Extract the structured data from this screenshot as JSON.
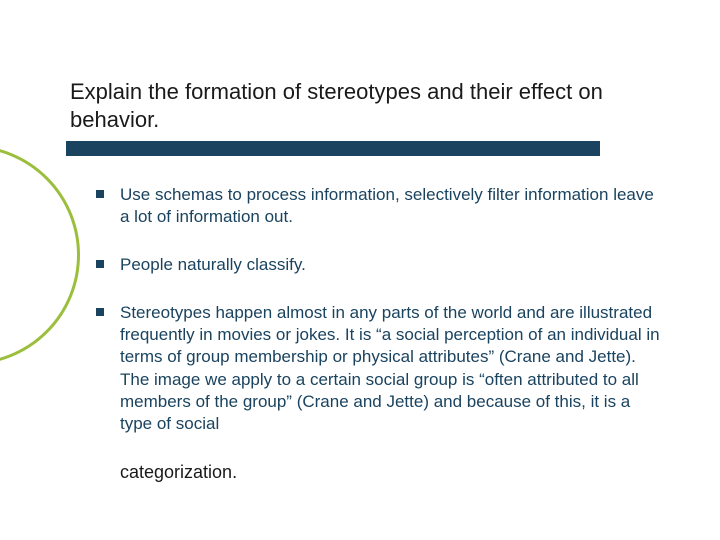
{
  "slide": {
    "title": "Explain the formation of stereotypes and their effect on behavior.",
    "underline_color": "#1a435f",
    "accent_circle_color": "#9bbf3c",
    "text_color": "#1a435f",
    "background_color": "#ffffff",
    "bullets": [
      "Use schemas to process information, selectively filter information leave a lot of information out.",
      "People naturally classify.",
      "Stereotypes happen almost in any parts of the world and are illustrated frequently in movies or jokes. It is “a social perception of an individual in terms of group membership or physical attributes” (Crane and Jette). The image we apply to a certain social group is “often attributed to all members of the group” (Crane and Jette) and because of this, it is a type of social"
    ],
    "trailing_text": "categorization."
  }
}
